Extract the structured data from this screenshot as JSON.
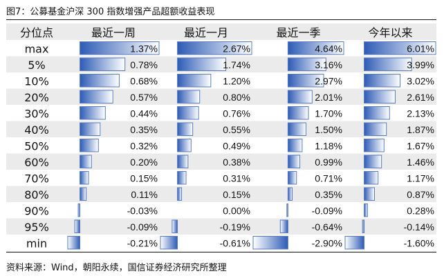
{
  "figure_caption": "图7：公募基金沪深 300 指数增强产品超额收益表现",
  "source_note": "资料来源：Wind，朝阳永续，国信证券经济研究所整理",
  "colors": {
    "bar_dark": "#2d5bb5",
    "bar_light": "#ffffff",
    "bar_border": "#5a7bbf",
    "zebra": "#ebebeb"
  },
  "chart_data": {
    "type": "table",
    "row_header": "分位点",
    "columns": [
      "最近一周",
      "最近一月",
      "最近一季",
      "今年以来"
    ],
    "rows": [
      "max",
      "5%",
      "10%",
      "20%",
      "30%",
      "40%",
      "50%",
      "60%",
      "70%",
      "80%",
      "90%",
      "95%",
      "min"
    ],
    "unit": "%",
    "series": [
      {
        "name": "最近一周",
        "values": [
          1.37,
          0.78,
          0.68,
          0.57,
          0.44,
          0.35,
          0.32,
          0.2,
          0.15,
          0.11,
          -0.03,
          -0.09,
          -0.21
        ]
      },
      {
        "name": "最近一月",
        "values": [
          2.67,
          1.74,
          1.2,
          0.8,
          0.76,
          0.55,
          0.49,
          0.38,
          0.31,
          0.15,
          0.0,
          -0.19,
          -0.61
        ]
      },
      {
        "name": "最近一季",
        "values": [
          4.64,
          3.16,
          2.97,
          2.01,
          1.7,
          1.5,
          1.18,
          0.99,
          0.71,
          0.35,
          -0.09,
          -0.64,
          -2.9
        ]
      },
      {
        "name": "今年以来",
        "values": [
          6.01,
          3.99,
          3.02,
          2.61,
          2.13,
          1.87,
          1.67,
          1.46,
          1.17,
          0.87,
          0.28,
          -0.14,
          -1.6
        ]
      }
    ],
    "value_labels": [
      [
        "1.37%",
        "2.67%",
        "4.64%",
        "6.01%"
      ],
      [
        "0.78%",
        "1.74%",
        "3.16%",
        "3.99%"
      ],
      [
        "0.68%",
        "1.20%",
        "2.97%",
        "3.02%"
      ],
      [
        "0.57%",
        "0.80%",
        "2.01%",
        "2.61%"
      ],
      [
        "0.44%",
        "0.76%",
        "1.70%",
        "2.13%"
      ],
      [
        "0.35%",
        "0.55%",
        "1.50%",
        "1.87%"
      ],
      [
        "0.32%",
        "0.49%",
        "1.18%",
        "1.67%"
      ],
      [
        "0.20%",
        "0.38%",
        "0.99%",
        "1.46%"
      ],
      [
        "0.15%",
        "0.31%",
        "0.71%",
        "1.17%"
      ],
      [
        "0.11%",
        "0.15%",
        "0.35%",
        "0.87%"
      ],
      [
        "-0.03%",
        "0.00%",
        "-0.09%",
        "0.28%"
      ],
      [
        "-0.09%",
        "-0.19%",
        "-0.64%",
        "-0.14%"
      ],
      [
        "-0.21%",
        "-0.61%",
        "-2.90%",
        "-1.60%"
      ]
    ]
  }
}
